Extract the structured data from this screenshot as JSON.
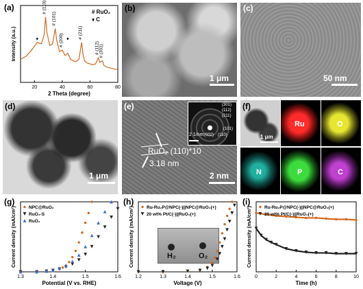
{
  "panel_letters": {
    "a": "(a)",
    "b": "(b)",
    "c": "(c)",
    "d": "(d)",
    "e": "(e)",
    "f": "(f)",
    "g": "(g)",
    "h": "(h)",
    "i": "(i)"
  },
  "colors": {
    "orange": "#d2691e",
    "blue": "#3a6fd0",
    "black": "#222222",
    "scale_white": "#ffffff"
  },
  "scale_bars": {
    "b": "1 μm",
    "c": "50 nm",
    "d": "1 μm",
    "e": "2 nm",
    "e_inset": "2 1/nm",
    "f": "1 μm"
  },
  "panel_e": {
    "annotation_line1": "RuO₂ (110)*10",
    "annotation_line2": "3.18 nm",
    "saed_rings": [
      "(301)",
      "(112)",
      "(211)",
      "(101)",
      "(002)",
      "(110)"
    ]
  },
  "panel_f": {
    "maps": [
      {
        "label": "Ru",
        "color": "#ff2a2a"
      },
      {
        "label": "O",
        "color": "#e6e632"
      },
      {
        "label": "N",
        "color": "#1fb0a0"
      },
      {
        "label": "P",
        "color": "#3ddc3d"
      },
      {
        "label": "C",
        "color": "#c040d0"
      }
    ]
  },
  "panel_h_inset": {
    "label_left": "H₂",
    "label_right": "O₂"
  },
  "chart_data": [
    {
      "panel": "a",
      "type": "line",
      "xlabel": "2 Theta (degree)",
      "ylabel": "Intensity (a.u.)",
      "xlim": [
        10,
        80
      ],
      "xticks": [
        20,
        40,
        60,
        80
      ],
      "legend": [
        "# RuO₂",
        "♦ C"
      ],
      "peak_labels": [
        {
          "x": 28,
          "text": "(110)"
        },
        {
          "x": 35,
          "text": "(101)"
        },
        {
          "x": 40,
          "text": "(200)"
        },
        {
          "x": 54,
          "text": "(211)"
        },
        {
          "x": 66,
          "text": "(112)"
        },
        {
          "x": 69,
          "text": "(301)"
        }
      ],
      "carbon_marks": [
        {
          "x": 22
        },
        {
          "x": 44
        }
      ],
      "series": [
        {
          "color": "#d2691e",
          "x": [
            10,
            14,
            18,
            22,
            25,
            27,
            28,
            29,
            31,
            33,
            35,
            36,
            38,
            40,
            42,
            44,
            46,
            48,
            50,
            52,
            54,
            55,
            56,
            58,
            60,
            62,
            64,
            66,
            67,
            69,
            70,
            72,
            74,
            76,
            78,
            80
          ],
          "y": [
            0.3,
            0.34,
            0.42,
            0.52,
            0.5,
            0.62,
            0.85,
            0.65,
            0.48,
            0.5,
            0.7,
            0.55,
            0.4,
            0.42,
            0.35,
            0.38,
            0.3,
            0.28,
            0.27,
            0.3,
            0.52,
            0.36,
            0.28,
            0.25,
            0.24,
            0.23,
            0.24,
            0.32,
            0.26,
            0.28,
            0.22,
            0.2,
            0.19,
            0.18,
            0.17,
            0.17
          ]
        }
      ]
    },
    {
      "panel": "g",
      "type": "scatter",
      "xlabel": "Potential (V vs. RHE)",
      "ylabel": "Current density (mA/cm²)",
      "xlim": [
        1.3,
        1.6
      ],
      "xticks": [
        1.3,
        1.4,
        1.5,
        1.6
      ],
      "series": [
        {
          "name": "NPC@RuO₂",
          "marker": "dot",
          "color": "#d2691e",
          "x": [
            1.3,
            1.35,
            1.38,
            1.4,
            1.42,
            1.43,
            1.44,
            1.45,
            1.46,
            1.47,
            1.48,
            1.49,
            1.5,
            1.51,
            1.52
          ],
          "y": [
            0,
            0,
            0.01,
            0.02,
            0.04,
            0.06,
            0.09,
            0.14,
            0.21,
            0.3,
            0.42,
            0.56,
            0.7,
            0.84,
            1.0
          ]
        },
        {
          "name": "RuO₂-S",
          "marker": "triangle-down",
          "color": "#222222",
          "x": [
            1.3,
            1.35,
            1.38,
            1.4,
            1.42,
            1.44,
            1.46,
            1.48,
            1.5,
            1.52,
            1.54,
            1.56,
            1.58,
            1.6
          ],
          "y": [
            0,
            0,
            0.01,
            0.02,
            0.04,
            0.07,
            0.11,
            0.17,
            0.25,
            0.36,
            0.5,
            0.64,
            0.78,
            0.9
          ]
        },
        {
          "name": "RuO₂",
          "marker": "triangle-up",
          "color": "#3a6fd0",
          "x": [
            1.3,
            1.35,
            1.38,
            1.4,
            1.42,
            1.44,
            1.46,
            1.48,
            1.5,
            1.52,
            1.54,
            1.56,
            1.58
          ],
          "y": [
            0,
            0,
            0.01,
            0.02,
            0.05,
            0.09,
            0.15,
            0.24,
            0.36,
            0.52,
            0.7,
            0.86,
            1.0
          ]
        }
      ]
    },
    {
      "panel": "h",
      "type": "scatter",
      "xlabel": "Voltage (V)",
      "ylabel": "Current density (mA/cm²)",
      "xlim": [
        1.2,
        1.6
      ],
      "xticks": [
        1.2,
        1.3,
        1.4,
        1.5,
        1.6
      ],
      "series": [
        {
          "name": "Ru-Ru₂P@NPC(-)||NPC@RuO₂(+)",
          "marker": "dot",
          "color": "#d2691e",
          "x": [
            1.2,
            1.3,
            1.4,
            1.45,
            1.48,
            1.5,
            1.51,
            1.52,
            1.53,
            1.54,
            1.55,
            1.56,
            1.57,
            1.58
          ],
          "y": [
            0,
            0,
            0.01,
            0.03,
            0.07,
            0.13,
            0.2,
            0.3,
            0.42,
            0.55,
            0.68,
            0.8,
            0.9,
            1.0
          ]
        },
        {
          "name": "20 wt% Pt/C(-)||RuO₂(+)",
          "marker": "triangle-down",
          "color": "#222222",
          "x": [
            1.2,
            1.3,
            1.4,
            1.45,
            1.48,
            1.5,
            1.52,
            1.53,
            1.54,
            1.55,
            1.56,
            1.57,
            1.58,
            1.59
          ],
          "y": [
            0,
            0,
            0.01,
            0.02,
            0.05,
            0.09,
            0.18,
            0.26,
            0.36,
            0.47,
            0.6,
            0.72,
            0.84,
            0.95
          ]
        }
      ]
    },
    {
      "panel": "i",
      "type": "line",
      "xlabel": "Time (h)",
      "ylabel": "Current density (mA/cm²)",
      "xlim": [
        0,
        10
      ],
      "xticks": [
        0,
        2,
        4,
        6,
        8,
        10
      ],
      "series": [
        {
          "name": "Ru-Ru₂P@NPC(-)||NPC@RuO₂(+)",
          "marker": "dot",
          "color": "#d2691e",
          "x": [
            0,
            1,
            2,
            3,
            4,
            5,
            6,
            7,
            8,
            9,
            10
          ],
          "y": [
            0.84,
            0.82,
            0.8,
            0.79,
            0.78,
            0.77,
            0.77,
            0.76,
            0.75,
            0.75,
            0.74
          ]
        },
        {
          "name": "20 wt% Pt/C(-)||RuO₂(+)",
          "marker": "triangle-down",
          "color": "#222222",
          "x": [
            0,
            0.5,
            1,
            1.5,
            2,
            3,
            4,
            5,
            6,
            7,
            8,
            9,
            10
          ],
          "y": [
            0.62,
            0.52,
            0.46,
            0.42,
            0.39,
            0.33,
            0.3,
            0.28,
            0.27,
            0.27,
            0.26,
            0.26,
            0.26
          ]
        }
      ]
    }
  ]
}
